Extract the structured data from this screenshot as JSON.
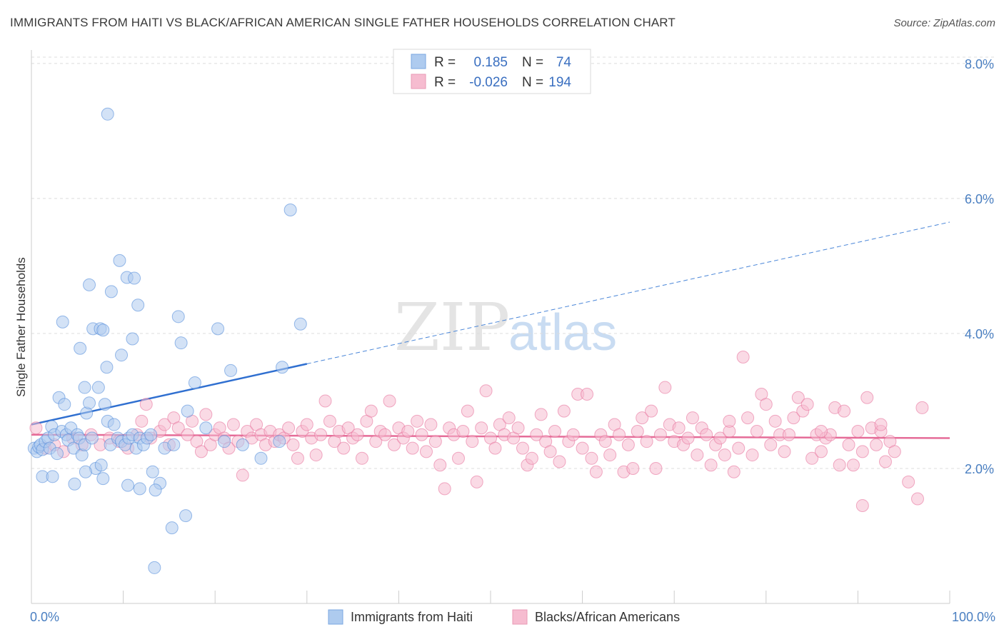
{
  "header": {
    "title": "IMMIGRANTS FROM HAITI VS BLACK/AFRICAN AMERICAN SINGLE FATHER HOUSEHOLDS CORRELATION CHART",
    "source": "Source: ZipAtlas.com"
  },
  "watermark": {
    "zip": "ZIP",
    "atlas": "atlas"
  },
  "legend": {
    "rows": [
      {
        "r_label": "R =",
        "r_value": "0.185",
        "n_label": "N =",
        "n_value": "74",
        "color": "#aecbef"
      },
      {
        "r_label": "R =",
        "r_value": "-0.026",
        "n_label": "N =",
        "n_value": "194",
        "color": "#f6bcd0"
      }
    ]
  },
  "bottom_legend": [
    {
      "label": "Immigrants from Haiti",
      "color": "#aecbef"
    },
    {
      "label": "Blacks/African Americans",
      "color": "#f6bcd0"
    }
  ],
  "chart_data": {
    "type": "scatter",
    "ylabel": "Single Father Households",
    "xlim": [
      0,
      100
    ],
    "ylim": [
      0,
      8.2
    ],
    "x_tick_labels": [
      "0.0%",
      "100.0%"
    ],
    "y_ticks": [
      2,
      4,
      6,
      8
    ],
    "y_tick_labels": [
      "2.0%",
      "4.0%",
      "6.0%",
      "8.0%"
    ],
    "grid": true,
    "legend_position": "top-center",
    "series": [
      {
        "name": "Immigrants from Haiti",
        "color": "#4a86d8",
        "fill": "#aecbef",
        "trend": {
          "x0": 0,
          "y0": 2.65,
          "x1": 30,
          "y1": 3.55,
          "dash_to_x": 100,
          "dash_to_y": 5.65
        },
        "points": [
          [
            0.3,
            2.3
          ],
          [
            0.6,
            2.25
          ],
          [
            0.8,
            2.32
          ],
          [
            1.0,
            2.35
          ],
          [
            1.2,
            2.28
          ],
          [
            1.5,
            2.4
          ],
          [
            1.8,
            2.45
          ],
          [
            2.0,
            2.3
          ],
          [
            2.2,
            2.62
          ],
          [
            2.5,
            2.5
          ],
          [
            2.8,
            2.22
          ],
          [
            3.0,
            3.05
          ],
          [
            3.3,
            2.55
          ],
          [
            3.6,
            2.95
          ],
          [
            3.8,
            2.5
          ],
          [
            4.0,
            2.42
          ],
          [
            4.3,
            2.6
          ],
          [
            4.6,
            2.3
          ],
          [
            5.0,
            2.5
          ],
          [
            5.2,
            2.45
          ],
          [
            5.5,
            2.2
          ],
          [
            5.8,
            2.35
          ],
          [
            6.0,
            2.82
          ],
          [
            6.3,
            2.97
          ],
          [
            6.6,
            2.45
          ],
          [
            7.0,
            2.0
          ],
          [
            7.3,
            3.2
          ],
          [
            7.6,
            2.05
          ],
          [
            8.0,
            2.95
          ],
          [
            8.3,
            2.7
          ],
          [
            8.6,
            2.35
          ],
          [
            9.0,
            2.65
          ],
          [
            9.4,
            2.45
          ],
          [
            9.8,
            2.4
          ],
          [
            10.2,
            2.35
          ],
          [
            10.6,
            2.45
          ],
          [
            11.0,
            2.5
          ],
          [
            11.4,
            2.3
          ],
          [
            11.8,
            2.45
          ],
          [
            12.2,
            2.35
          ],
          [
            12.6,
            2.45
          ],
          [
            13.0,
            2.5
          ],
          [
            14.5,
            2.3
          ],
          [
            15.5,
            2.35
          ],
          [
            17.0,
            2.85
          ],
          [
            19.0,
            2.6
          ],
          [
            21.0,
            2.4
          ],
          [
            23.0,
            2.35
          ],
          [
            25.0,
            2.15
          ],
          [
            27.0,
            2.4
          ],
          [
            8.3,
            7.25
          ],
          [
            28.2,
            5.83
          ],
          [
            9.6,
            5.08
          ],
          [
            10.4,
            4.83
          ],
          [
            11.2,
            4.82
          ],
          [
            6.3,
            4.72
          ],
          [
            8.7,
            4.62
          ],
          [
            11.6,
            4.42
          ],
          [
            3.4,
            4.17
          ],
          [
            16.0,
            4.25
          ],
          [
            6.7,
            4.07
          ],
          [
            7.5,
            4.07
          ],
          [
            7.8,
            4.05
          ],
          [
            20.3,
            4.07
          ],
          [
            29.3,
            4.14
          ],
          [
            11.0,
            3.92
          ],
          [
            16.3,
            3.86
          ],
          [
            5.3,
            3.78
          ],
          [
            9.8,
            3.68
          ],
          [
            8.2,
            3.5
          ],
          [
            21.7,
            3.45
          ],
          [
            27.3,
            3.5
          ],
          [
            17.8,
            3.27
          ],
          [
            5.8,
            3.2
          ],
          [
            1.2,
            1.88
          ],
          [
            2.3,
            1.88
          ],
          [
            4.7,
            1.77
          ],
          [
            5.9,
            1.95
          ],
          [
            7.8,
            1.85
          ],
          [
            10.5,
            1.75
          ],
          [
            11.8,
            1.7
          ],
          [
            13.2,
            1.95
          ],
          [
            14.0,
            1.78
          ],
          [
            13.5,
            1.68
          ],
          [
            16.8,
            1.3
          ],
          [
            15.3,
            1.12
          ],
          [
            13.4,
            0.53
          ]
        ]
      },
      {
        "name": "Blacks/African Americans",
        "color": "#e56c98",
        "fill": "#f6bcd0",
        "trend": {
          "x0": 0,
          "y0": 2.5,
          "x1": 100,
          "y1": 2.45
        },
        "points": [
          [
            0.5,
            2.6
          ],
          [
            1.5,
            2.3
          ],
          [
            2.5,
            2.35
          ],
          [
            3.5,
            2.25
          ],
          [
            4.5,
            2.45
          ],
          [
            5.5,
            2.35
          ],
          [
            6.5,
            2.5
          ],
          [
            7.5,
            2.35
          ],
          [
            8.5,
            2.45
          ],
          [
            9.5,
            2.4
          ],
          [
            10.5,
            2.3
          ],
          [
            11.5,
            2.5
          ],
          [
            12.0,
            2.7
          ],
          [
            12.5,
            2.95
          ],
          [
            13.0,
            2.45
          ],
          [
            14.0,
            2.55
          ],
          [
            14.5,
            2.65
          ],
          [
            15.0,
            2.35
          ],
          [
            15.5,
            2.75
          ],
          [
            16.0,
            2.6
          ],
          [
            17.0,
            2.5
          ],
          [
            17.5,
            2.7
          ],
          [
            18.0,
            2.4
          ],
          [
            18.5,
            2.25
          ],
          [
            19.0,
            2.8
          ],
          [
            19.5,
            2.35
          ],
          [
            20.0,
            2.5
          ],
          [
            20.5,
            2.6
          ],
          [
            21.0,
            2.45
          ],
          [
            21.5,
            2.3
          ],
          [
            22.0,
            2.65
          ],
          [
            22.5,
            2.4
          ],
          [
            23.0,
            1.9
          ],
          [
            23.5,
            2.55
          ],
          [
            24.0,
            2.45
          ],
          [
            24.5,
            2.65
          ],
          [
            25.0,
            2.5
          ],
          [
            25.5,
            2.35
          ],
          [
            26.0,
            2.55
          ],
          [
            26.5,
            2.4
          ],
          [
            27.0,
            2.5
          ],
          [
            27.5,
            2.45
          ],
          [
            28.0,
            2.6
          ],
          [
            28.5,
            2.35
          ],
          [
            29.0,
            2.15
          ],
          [
            29.5,
            2.55
          ],
          [
            30.0,
            2.65
          ],
          [
            30.5,
            2.45
          ],
          [
            31.0,
            2.2
          ],
          [
            31.5,
            2.5
          ],
          [
            32.0,
            3.0
          ],
          [
            32.5,
            2.7
          ],
          [
            33.0,
            2.4
          ],
          [
            33.5,
            2.55
          ],
          [
            34.0,
            2.3
          ],
          [
            34.5,
            2.6
          ],
          [
            35.0,
            2.45
          ],
          [
            35.5,
            2.5
          ],
          [
            36.0,
            2.15
          ],
          [
            36.5,
            2.7
          ],
          [
            37.0,
            2.85
          ],
          [
            37.5,
            2.4
          ],
          [
            38.0,
            2.55
          ],
          [
            38.5,
            2.5
          ],
          [
            39.0,
            3.0
          ],
          [
            39.5,
            2.35
          ],
          [
            40.0,
            2.6
          ],
          [
            40.5,
            2.45
          ],
          [
            41.0,
            2.55
          ],
          [
            41.5,
            2.3
          ],
          [
            42.0,
            2.7
          ],
          [
            42.5,
            2.5
          ],
          [
            43.0,
            2.25
          ],
          [
            43.5,
            2.65
          ],
          [
            44.0,
            2.4
          ],
          [
            44.5,
            2.05
          ],
          [
            45.0,
            1.7
          ],
          [
            45.5,
            2.6
          ],
          [
            46.0,
            2.5
          ],
          [
            46.5,
            2.15
          ],
          [
            47.0,
            2.55
          ],
          [
            47.5,
            2.85
          ],
          [
            48.0,
            2.4
          ],
          [
            48.5,
            1.8
          ],
          [
            49.0,
            2.6
          ],
          [
            49.5,
            3.15
          ],
          [
            50.0,
            2.45
          ],
          [
            50.5,
            2.3
          ],
          [
            51.0,
            2.65
          ],
          [
            51.5,
            2.5
          ],
          [
            52.0,
            2.75
          ],
          [
            52.5,
            2.45
          ],
          [
            53.0,
            2.6
          ],
          [
            53.5,
            2.3
          ],
          [
            54.0,
            2.05
          ],
          [
            54.5,
            2.15
          ],
          [
            55.0,
            2.5
          ],
          [
            55.5,
            2.8
          ],
          [
            56.0,
            2.4
          ],
          [
            56.5,
            2.25
          ],
          [
            57.0,
            2.55
          ],
          [
            57.5,
            2.1
          ],
          [
            58.0,
            2.85
          ],
          [
            58.5,
            2.4
          ],
          [
            59.0,
            2.5
          ],
          [
            59.5,
            3.1
          ],
          [
            60.0,
            2.3
          ],
          [
            60.5,
            3.1
          ],
          [
            61.0,
            2.15
          ],
          [
            61.5,
            1.95
          ],
          [
            62.0,
            2.5
          ],
          [
            62.5,
            2.4
          ],
          [
            63.0,
            2.2
          ],
          [
            63.5,
            2.65
          ],
          [
            64.0,
            2.5
          ],
          [
            64.5,
            1.95
          ],
          [
            65.0,
            2.35
          ],
          [
            65.5,
            2.0
          ],
          [
            66.0,
            2.55
          ],
          [
            66.5,
            2.75
          ],
          [
            67.0,
            2.4
          ],
          [
            67.5,
            2.85
          ],
          [
            68.0,
            2.0
          ],
          [
            68.5,
            2.5
          ],
          [
            69.0,
            3.2
          ],
          [
            69.5,
            2.65
          ],
          [
            70.0,
            2.4
          ],
          [
            70.5,
            2.6
          ],
          [
            71.0,
            2.35
          ],
          [
            71.5,
            2.45
          ],
          [
            72.0,
            2.75
          ],
          [
            72.5,
            2.2
          ],
          [
            73.0,
            2.6
          ],
          [
            73.5,
            2.5
          ],
          [
            74.0,
            2.05
          ],
          [
            74.5,
            2.35
          ],
          [
            75.0,
            2.45
          ],
          [
            75.5,
            2.2
          ],
          [
            76.0,
            2.55
          ],
          [
            76.5,
            1.95
          ],
          [
            77.0,
            2.3
          ],
          [
            77.5,
            3.65
          ],
          [
            78.0,
            2.75
          ],
          [
            78.5,
            2.2
          ],
          [
            79.0,
            2.55
          ],
          [
            79.5,
            3.1
          ],
          [
            80.0,
            2.95
          ],
          [
            80.5,
            2.35
          ],
          [
            81.0,
            2.7
          ],
          [
            81.5,
            2.5
          ],
          [
            82.0,
            2.25
          ],
          [
            82.5,
            2.5
          ],
          [
            83.0,
            2.75
          ],
          [
            83.5,
            3.05
          ],
          [
            84.0,
            2.85
          ],
          [
            84.5,
            2.95
          ],
          [
            85.0,
            2.15
          ],
          [
            85.5,
            2.5
          ],
          [
            86.0,
            2.25
          ],
          [
            86.5,
            2.45
          ],
          [
            87.0,
            2.5
          ],
          [
            87.5,
            2.9
          ],
          [
            88.0,
            2.05
          ],
          [
            88.5,
            2.85
          ],
          [
            89.0,
            2.35
          ],
          [
            89.5,
            2.05
          ],
          [
            90.0,
            2.55
          ],
          [
            90.5,
            2.25
          ],
          [
            91.0,
            3.05
          ],
          [
            91.5,
            2.6
          ],
          [
            92.0,
            2.35
          ],
          [
            92.5,
            2.55
          ],
          [
            93.0,
            2.1
          ],
          [
            93.5,
            2.4
          ],
          [
            94.0,
            2.25
          ],
          [
            95.5,
            1.8
          ],
          [
            96.5,
            1.55
          ],
          [
            97.0,
            2.9
          ],
          [
            90.5,
            1.45
          ],
          [
            86.0,
            2.55
          ],
          [
            92.5,
            2.65
          ],
          [
            76.0,
            2.7
          ]
        ]
      }
    ]
  }
}
